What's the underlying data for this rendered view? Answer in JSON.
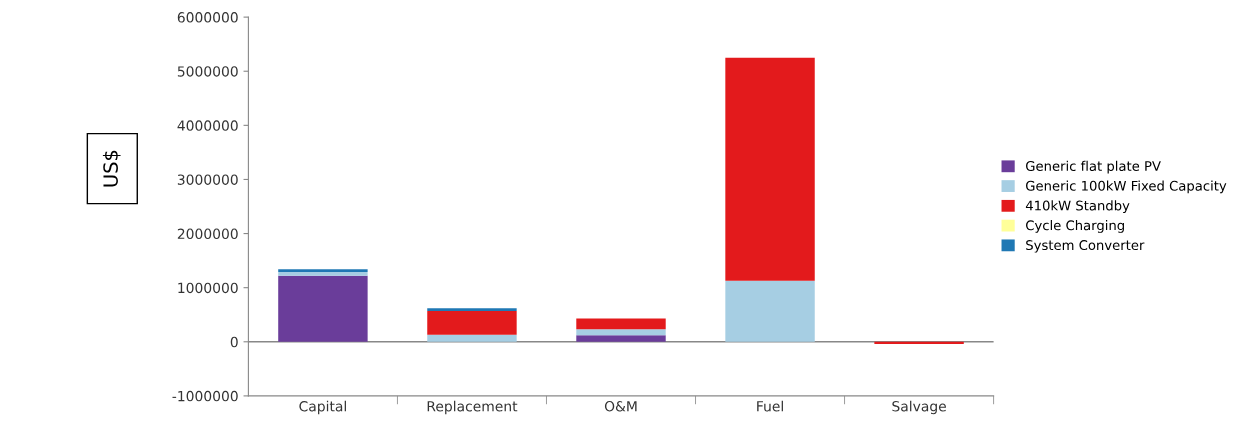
{
  "chart_data": {
    "type": "bar",
    "stacked": true,
    "ylabel": "US$",
    "categories": [
      "Capital",
      "Replacement",
      "O&M",
      "Fuel",
      "Salvage"
    ],
    "series": [
      {
        "name": "Generic flat plate PV",
        "color": "#6a3d9a",
        "values": [
          1220000,
          0,
          120000,
          0,
          0
        ]
      },
      {
        "name": "Generic 100kW Fixed Capacity",
        "color": "#a6cee3",
        "values": [
          70000,
          130000,
          110000,
          1130000,
          0
        ]
      },
      {
        "name": "410kW Standby",
        "color": "#e31a1c",
        "values": [
          0,
          440000,
          200000,
          4120000,
          -40000
        ]
      },
      {
        "name": "Cycle Charging",
        "color": "#ffff99",
        "values": [
          0,
          0,
          0,
          0,
          0
        ]
      },
      {
        "name": "System Converter",
        "color": "#1f78b4",
        "values": [
          50000,
          50000,
          0,
          0,
          0
        ]
      }
    ],
    "ylim": [
      -1000000,
      6000000
    ],
    "yticks": [
      -1000000,
      0,
      1000000,
      2000000,
      3000000,
      4000000,
      5000000,
      6000000
    ],
    "ref_lines": [
      {
        "axis": "y",
        "value": 0,
        "color": "#888888"
      }
    ],
    "grid": false,
    "legend": "right"
  }
}
